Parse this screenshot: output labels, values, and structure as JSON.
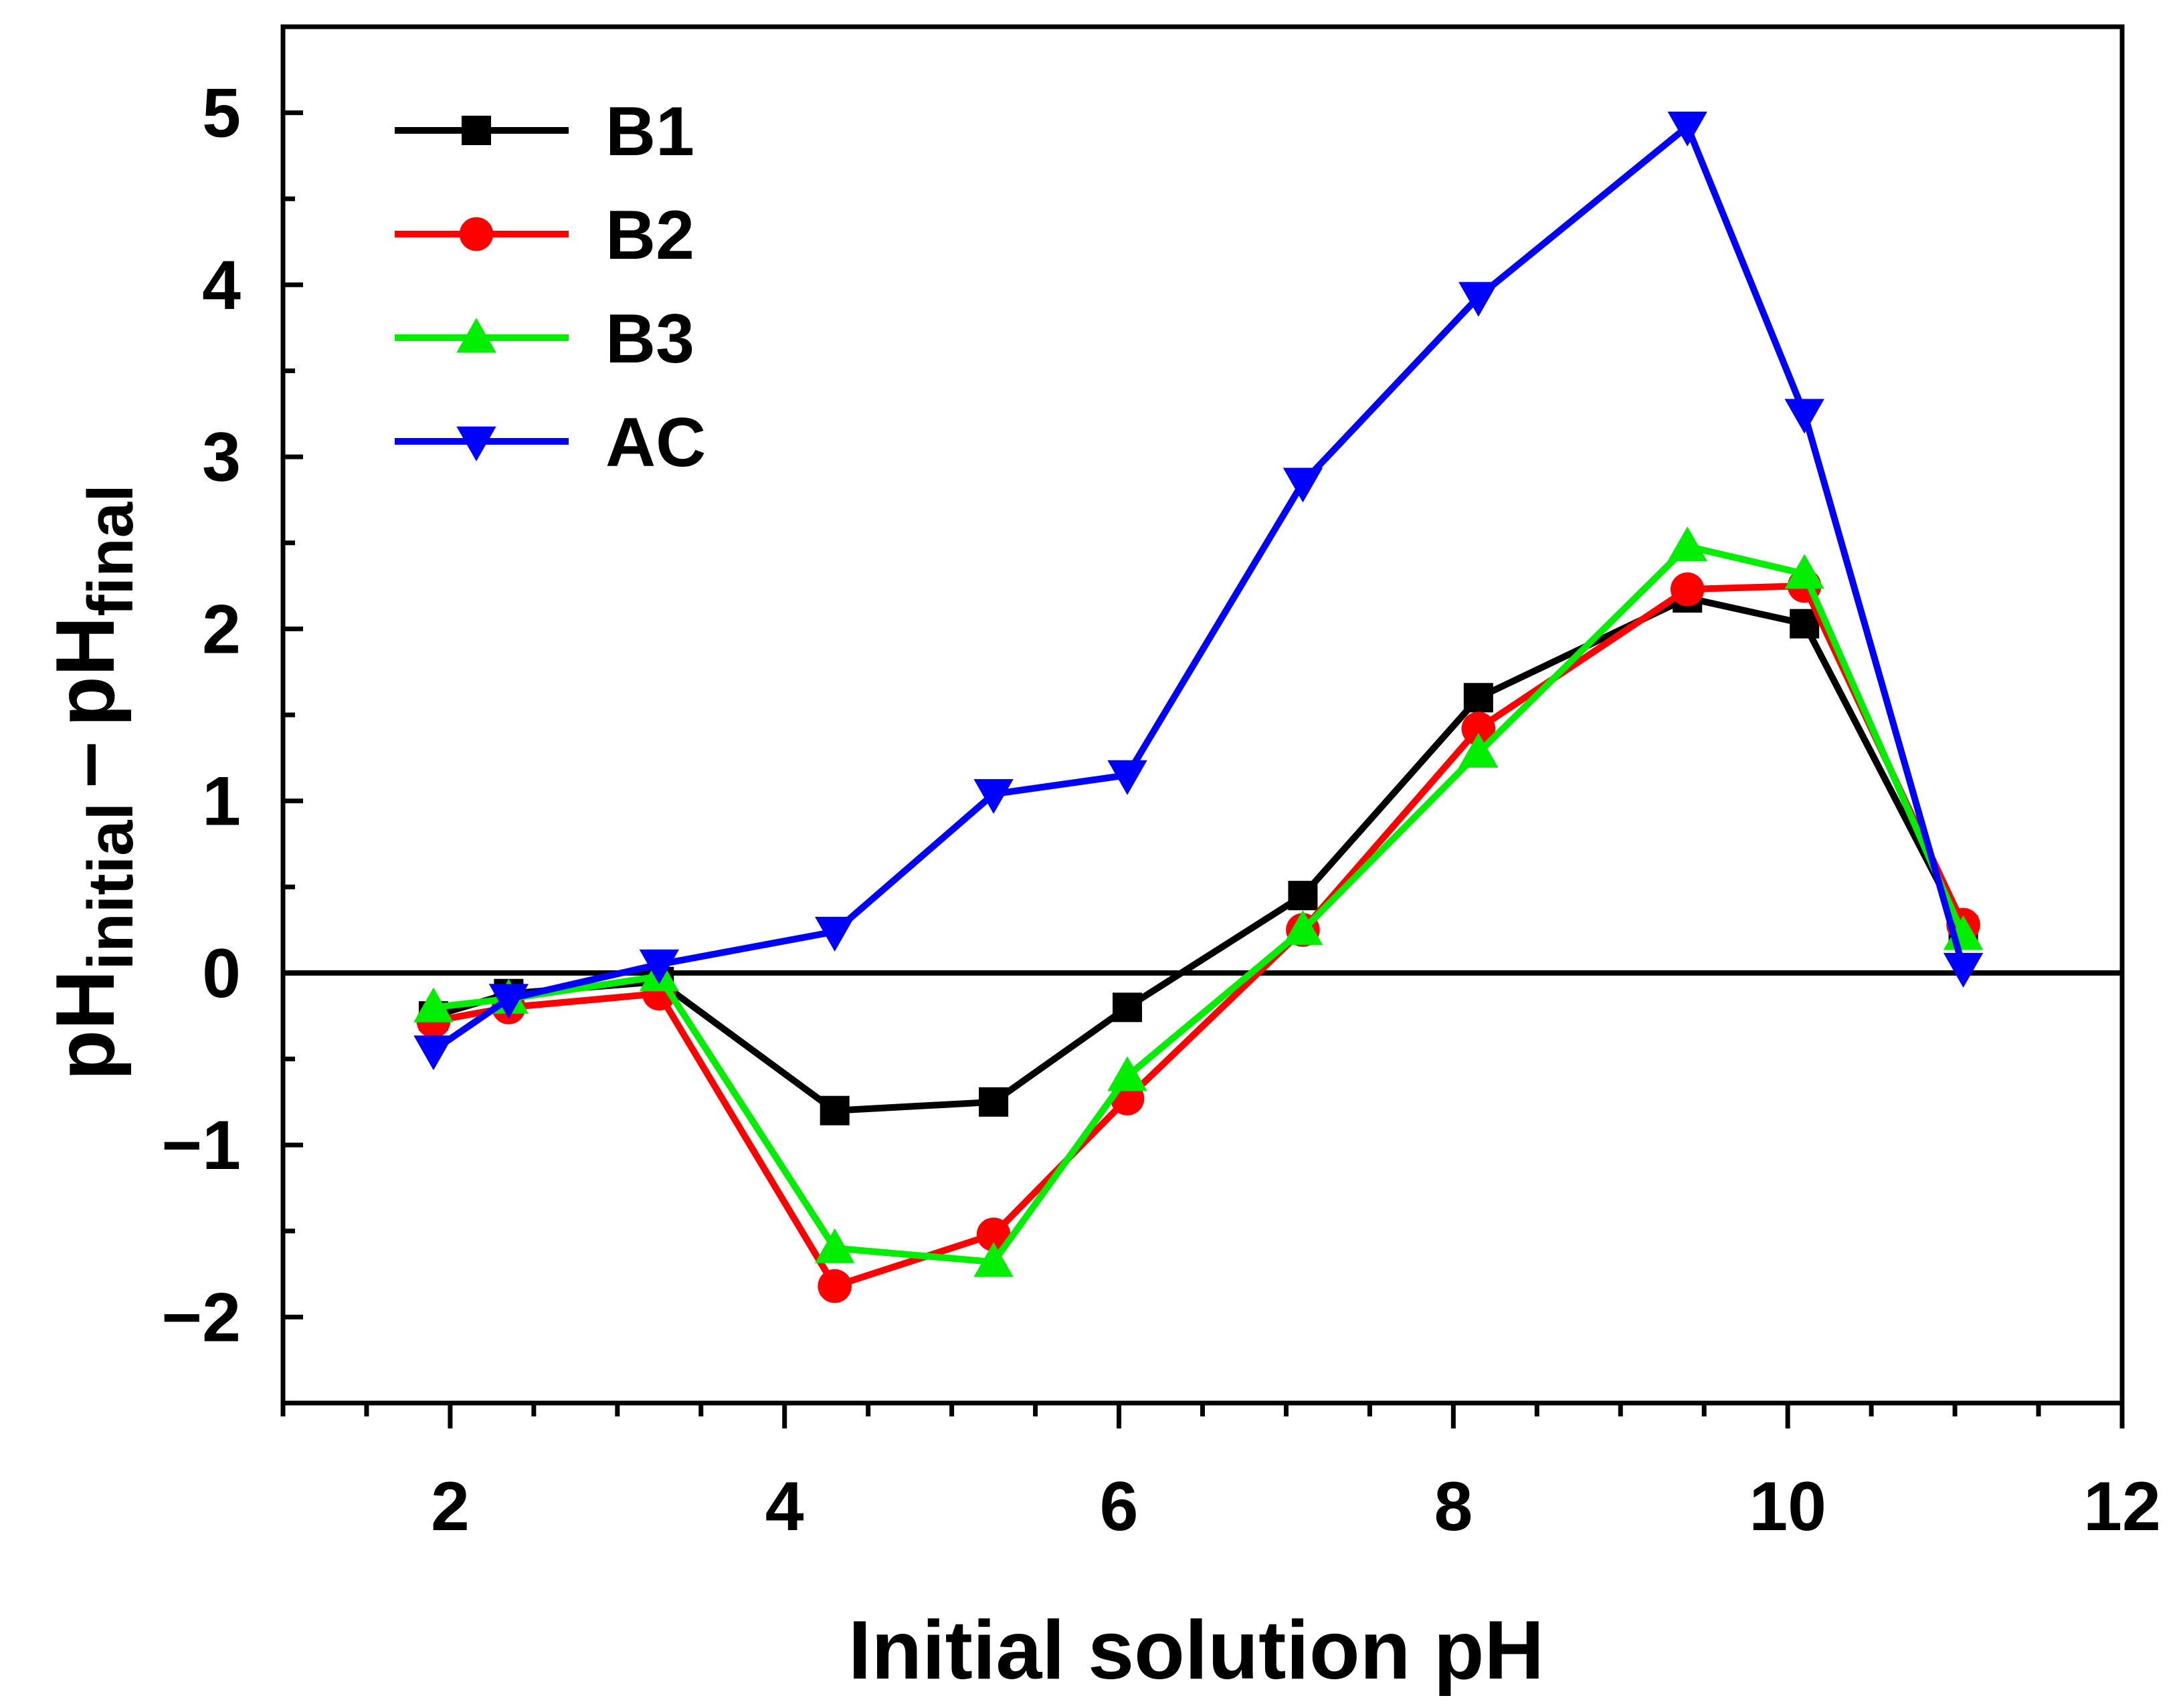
{
  "chart_data": {
    "type": "line",
    "title": "",
    "xlabel": "Initial solution pH",
    "ylabel": {
      "base1": "pH",
      "sub1": "initial",
      "operator": "–",
      "base2": "pH",
      "sub2": "final"
    },
    "xlim": [
      1,
      12
    ],
    "ylim": [
      -2.5,
      5.5
    ],
    "xticks": [
      2,
      4,
      6,
      8,
      10,
      12
    ],
    "xtick_labels": [
      "2",
      "4",
      "6",
      "8",
      "10",
      "12"
    ],
    "yticks": [
      -2,
      -1,
      0,
      1,
      2,
      3,
      4,
      5
    ],
    "ytick_labels": [
      "−2",
      "−1",
      "0",
      "1",
      "2",
      "3",
      "4",
      "5"
    ],
    "grid": false,
    "zero_line": 0,
    "legend_position": "top-left",
    "x": [
      1.9,
      2.35,
      3.25,
      4.3,
      5.25,
      6.05,
      7.1,
      8.15,
      9.4,
      10.1,
      11.05
    ],
    "series": [
      {
        "name": "B1",
        "color": "#000000",
        "marker": "square",
        "values": [
          -0.25,
          -0.12,
          -0.05,
          -0.8,
          -0.75,
          -0.2,
          0.45,
          1.6,
          2.18,
          2.03,
          0.25
        ]
      },
      {
        "name": "B2",
        "color": "#ff0000",
        "marker": "circle",
        "values": [
          -0.28,
          -0.2,
          -0.12,
          -1.82,
          -1.52,
          -0.73,
          0.25,
          1.42,
          2.23,
          2.25,
          0.28
        ]
      },
      {
        "name": "B3",
        "color": "#00ee00",
        "marker": "triangle-up",
        "values": [
          -0.2,
          -0.15,
          -0.02,
          -1.6,
          -1.68,
          -0.6,
          0.25,
          1.28,
          2.48,
          2.32,
          0.22
        ]
      },
      {
        "name": "AC",
        "color": "#0000ff",
        "marker": "triangle-down",
        "values": [
          -0.45,
          -0.15,
          0.05,
          0.24,
          1.04,
          1.15,
          2.85,
          3.93,
          4.92,
          3.25,
          0.03
        ]
      }
    ]
  }
}
